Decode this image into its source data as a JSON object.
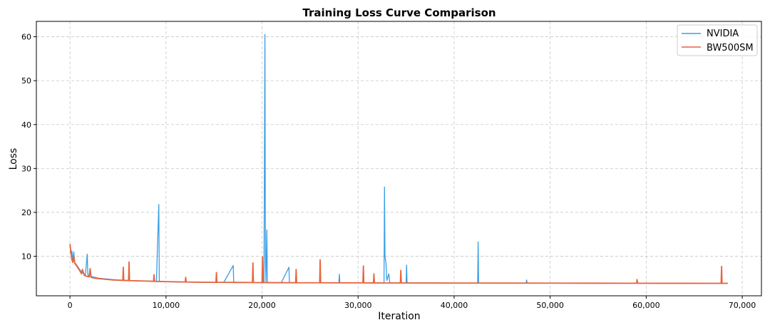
{
  "chart_data": {
    "type": "line",
    "title": "Training Loss Curve Comparison",
    "xlabel": "Iteration",
    "ylabel": "Loss",
    "xlim": [
      -3500,
      72000
    ],
    "ylim": [
      1,
      63.5
    ],
    "xticks": [
      0,
      10000,
      20000,
      30000,
      40000,
      50000,
      60000,
      70000
    ],
    "xtick_labels": [
      "0",
      "10,000",
      "20,000",
      "30,000",
      "40,000",
      "50,000",
      "60,000",
      "70,000"
    ],
    "yticks": [
      10,
      20,
      30,
      40,
      50,
      60
    ],
    "ytick_labels": [
      "10",
      "20",
      "30",
      "40",
      "50",
      "60"
    ],
    "grid": true,
    "legend_position": "top-right",
    "series": [
      {
        "name": "NVIDIA",
        "color": "#3a9ee4",
        "x": [
          0,
          100,
          200,
          300,
          400,
          500,
          700,
          1000,
          1300,
          1600,
          1800,
          1850,
          1900,
          2200,
          2600,
          3000,
          3500,
          4000,
          4500,
          5000,
          6000,
          7000,
          8000,
          9000,
          9250,
          9300,
          9350,
          10000,
          11000,
          12000,
          13000,
          14000,
          15000,
          16000,
          17000,
          17050,
          17100,
          18000,
          19000,
          20000,
          20200,
          20300,
          20350,
          20400,
          20500,
          20550,
          20600,
          20700,
          21000,
          22000,
          22800,
          22850,
          22900,
          24000,
          26000,
          28000,
          28050,
          28100,
          30000,
          32000,
          32700,
          32750,
          32800,
          32900,
          33000,
          33200,
          33300,
          34000,
          35000,
          35050,
          35100,
          38000,
          40000,
          42000,
          42450,
          42500,
          42550,
          44000,
          46000,
          47500,
          47550,
          47600,
          50000,
          52000,
          55000,
          58000,
          60000,
          62000,
          64000,
          66000,
          68000,
          68500
        ],
        "values": [
          12.5,
          10.5,
          11.2,
          9.0,
          11.0,
          8.6,
          8.0,
          7.0,
          6.2,
          5.8,
          10.5,
          6.0,
          5.6,
          5.4,
          5.2,
          5.0,
          4.9,
          4.8,
          4.7,
          4.6,
          4.5,
          4.4,
          4.35,
          4.3,
          21.8,
          4.3,
          4.25,
          4.2,
          4.15,
          4.1,
          4.08,
          4.05,
          4.03,
          4.02,
          7.9,
          4.0,
          4.0,
          4.0,
          4.0,
          4.0,
          4.0,
          60.5,
          10.0,
          4.2,
          16.0,
          4.1,
          4.0,
          4.0,
          4.0,
          3.98,
          7.5,
          4.0,
          3.98,
          3.97,
          3.96,
          3.95,
          5.9,
          3.95,
          3.94,
          3.93,
          3.93,
          25.8,
          10.0,
          8.5,
          4.5,
          6.0,
          3.95,
          3.93,
          3.92,
          8.0,
          3.92,
          3.91,
          3.9,
          3.9,
          3.9,
          13.3,
          3.9,
          3.89,
          3.88,
          3.88,
          4.6,
          3.88,
          3.87,
          3.86,
          3.85,
          3.85,
          3.84,
          3.84,
          3.83,
          3.83,
          3.82,
          3.82
        ]
      },
      {
        "name": "BW500SM",
        "color": "#e8643c",
        "x": [
          0,
          100,
          200,
          300,
          400,
          500,
          700,
          1000,
          1200,
          1300,
          1500,
          2000,
          2100,
          2200,
          2600,
          3000,
          3500,
          4000,
          4500,
          5000,
          5500,
          5550,
          5600,
          6100,
          6150,
          6200,
          7000,
          8000,
          8700,
          8750,
          8800,
          9000,
          10000,
          11000,
          12000,
          12050,
          12100,
          13000,
          15200,
          15250,
          15300,
          17000,
          19000,
          19050,
          19100,
          20000,
          20050,
          20100,
          21000,
          23500,
          23550,
          23600,
          26000,
          26050,
          26100,
          28000,
          30500,
          30550,
          30600,
          31600,
          31650,
          31700,
          34400,
          34450,
          34500,
          38000,
          42000,
          46000,
          50000,
          54000,
          58000,
          59000,
          59050,
          59100,
          62000,
          64000,
          66000,
          67800,
          67850,
          67900,
          68500
        ],
        "values": [
          12.8,
          10.8,
          9.2,
          8.6,
          10.0,
          8.4,
          7.8,
          6.8,
          6.0,
          7.0,
          5.6,
          5.3,
          7.2,
          5.2,
          5.0,
          4.9,
          4.8,
          4.7,
          4.6,
          4.55,
          4.5,
          7.5,
          4.5,
          4.45,
          8.7,
          4.45,
          4.4,
          4.35,
          4.3,
          5.8,
          4.3,
          4.28,
          4.22,
          4.18,
          4.15,
          5.2,
          4.15,
          4.1,
          4.07,
          6.3,
          4.07,
          4.05,
          4.02,
          8.5,
          4.02,
          4.0,
          9.8,
          4.0,
          3.99,
          3.97,
          7.0,
          3.97,
          3.96,
          9.2,
          3.96,
          3.95,
          3.94,
          7.8,
          3.94,
          3.93,
          6.0,
          3.93,
          3.92,
          6.8,
          3.92,
          3.91,
          3.9,
          3.89,
          3.88,
          3.87,
          3.86,
          3.86,
          4.7,
          3.86,
          3.85,
          3.85,
          3.84,
          3.84,
          7.7,
          3.84,
          3.84
        ]
      }
    ]
  }
}
